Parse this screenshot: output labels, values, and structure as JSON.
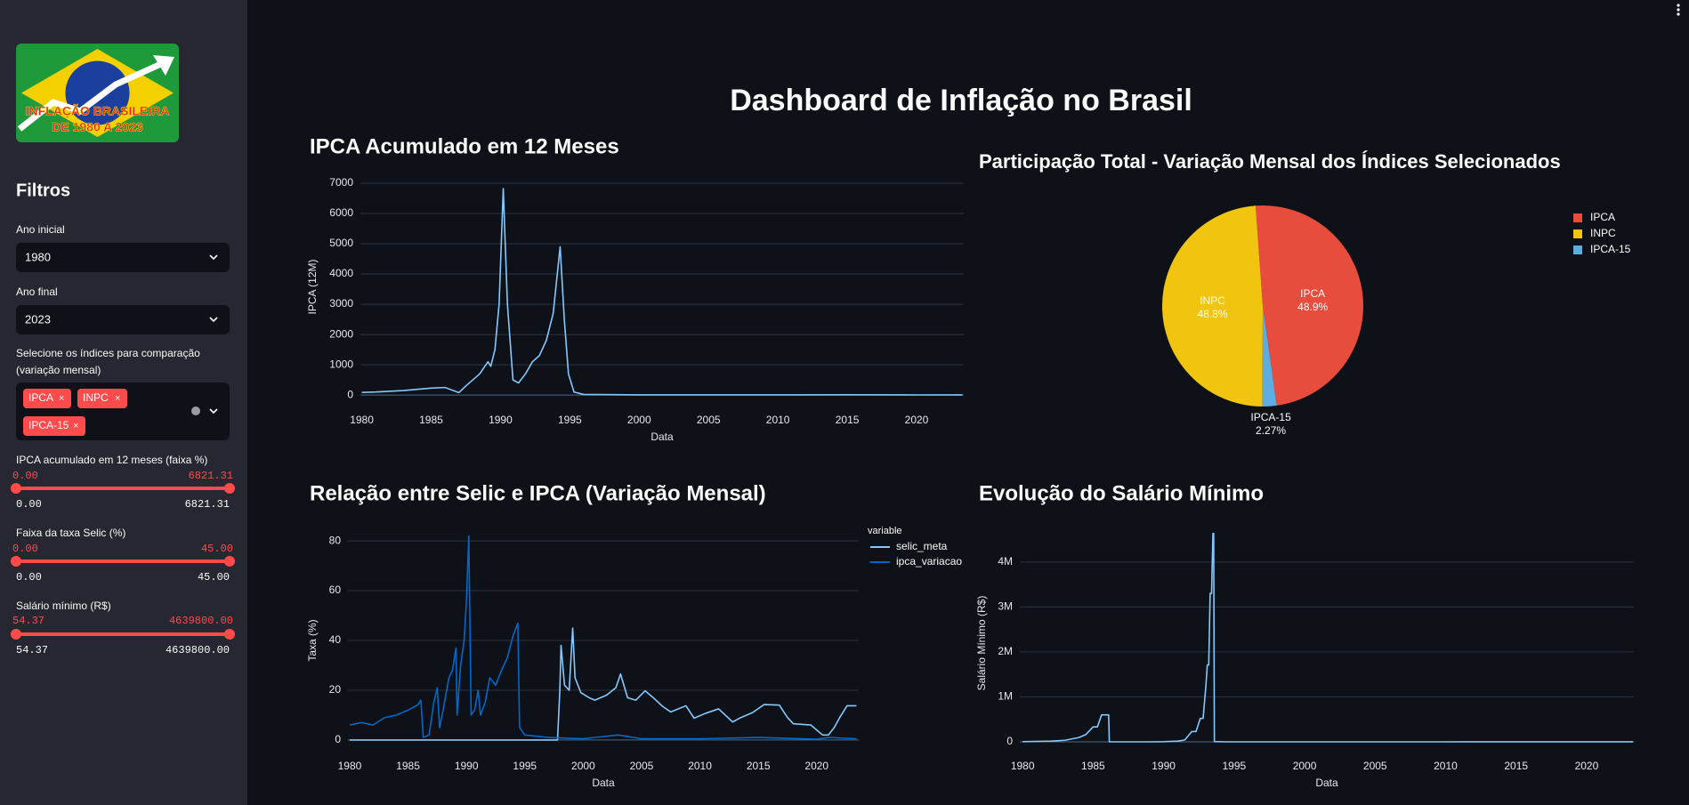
{
  "sidebar": {
    "logo": {
      "line1": "INFLAÇÃO BRASILEIRA",
      "line2": "DE 1980 A 2023"
    },
    "heading": "Filtros",
    "controls": [
      {
        "label": "Ano inicial",
        "value": "1980"
      },
      {
        "label": "Ano final",
        "value": "2023"
      },
      {
        "label": "Selecione os índices para comparação (variação mensal)",
        "selected": [
          "IPCA",
          "INPC",
          "IPCA-15"
        ]
      },
      {
        "label": "IPCA acumulado em 12 meses (faixa %)",
        "min": "0.00",
        "max": "6821.31"
      },
      {
        "label": "Faixa da taxa Selic (%)",
        "min": "0.00",
        "max": "45.00"
      },
      {
        "label": "Salário mínimo (R$)",
        "min": "54.37",
        "max": "4639800.00"
      }
    ]
  },
  "header": {
    "title": "Dashboard de Inflação no Brasil"
  },
  "chart_data": [
    {
      "type": "line",
      "title": "IPCA Acumulado em 12 Meses",
      "xlabel": "Data",
      "ylabel": "IPCA (12M)",
      "xlim": [
        1979.9,
        2023.4
      ],
      "ylim": [
        -290,
        7440
      ],
      "xticks": [
        1980,
        1985,
        1990,
        1995,
        2000,
        2005,
        2010,
        2015,
        2020
      ],
      "yticks": [
        0,
        1000,
        2000,
        3000,
        4000,
        5000,
        6000,
        7000
      ],
      "grid": true,
      "series": [
        {
          "color": "#83c9ff",
          "x": [
            1980,
            1981,
            1983,
            1985,
            1986,
            1987.0,
            1987.5,
            1988.5,
            1989.1,
            1989.3,
            1989.6,
            1989.9,
            1990.2,
            1990.5,
            1990.9,
            1991.3,
            1991.8,
            1992.3,
            1992.8,
            1993.3,
            1993.8,
            1994.3,
            1994.6,
            1994.9,
            1995.3,
            1996,
            2000,
            2005,
            2010,
            2015,
            2020,
            2023.3
          ],
          "values": [
            86,
            100,
            150,
            230,
            250,
            80,
            300,
            700,
            1100,
            950,
            1500,
            3000,
            6821.31,
            3000,
            500,
            400,
            700,
            1100,
            1300,
            1800,
            2700,
            4900,
            2500,
            700,
            100,
            20,
            6,
            6,
            5,
            10,
            4,
            5
          ]
        }
      ]
    },
    {
      "type": "pie",
      "title": "Participação Total - Variação Mensal dos Índices Selecionados",
      "categories": [
        "IPCA",
        "INPC",
        "IPCA-15"
      ],
      "values": [
        48.9,
        48.8,
        2.27
      ],
      "value_labels": [
        "48.9%",
        "48.8%",
        "2.27%"
      ],
      "colors": [
        "#e74c3c",
        "#f1c40f",
        "#5dade2"
      ]
    },
    {
      "type": "line",
      "title": "Relação entre Selic e IPCA (Variação Mensal)",
      "xlabel": "Data",
      "ylabel": "Taxa (%)",
      "legend_title": "variable",
      "xlim": [
        1979.85,
        2023.6
      ],
      "ylim": [
        -5.4,
        85.4
      ],
      "xticks": [
        1980,
        1985,
        1990,
        1995,
        2000,
        2005,
        2010,
        2015,
        2020
      ],
      "yticks": [
        0,
        20,
        40,
        60,
        80
      ],
      "grid": true,
      "series": [
        {
          "name": "selic_meta",
          "color": "#83c9ff",
          "x": [
            1980,
            1997.8,
            1998,
            1998.1,
            1998.4,
            1998.8,
            1999.1,
            1999.3,
            1999.8,
            2000.5,
            2001,
            2002,
            2002.8,
            2003.2,
            2003.8,
            2004.5,
            2005.3,
            2006,
            2006.8,
            2007.5,
            2008.8,
            2009.5,
            2010.5,
            2011.6,
            2012.8,
            2013.5,
            2014.5,
            2015.5,
            2016.8,
            2017.5,
            2018,
            2019.5,
            2020.5,
            2021,
            2021.5,
            2022,
            2022.6,
            2023.4
          ],
          "values": [
            0,
            0,
            20,
            38,
            22,
            20,
            45,
            25,
            19,
            17,
            16,
            18,
            21,
            26.5,
            17,
            16,
            19.75,
            17,
            13.5,
            11.25,
            13.75,
            8.75,
            10.75,
            12.5,
            7.25,
            9,
            11,
            14.25,
            14,
            9,
            6.5,
            6,
            2,
            2,
            5,
            9.25,
            13.75,
            13.75
          ]
        },
        {
          "name": "ipca_variacao",
          "color": "#0068c9",
          "x": [
            1980,
            1981,
            1982,
            1983,
            1984,
            1985,
            1985.8,
            1986.1,
            1986.3,
            1986.8,
            1987.2,
            1987.5,
            1987.7,
            1988,
            1988.5,
            1988.8,
            1989.1,
            1989.2,
            1989.5,
            1989.8,
            1990,
            1990.2,
            1990.4,
            1990.7,
            1991,
            1991.2,
            1991.6,
            1992,
            1992.5,
            1993,
            1993.5,
            1994,
            1994.4,
            1994.55,
            1995,
            1997,
            2000,
            2003,
            2005,
            2010,
            2015,
            2020,
            2021,
            2023.4
          ],
          "values": [
            6,
            7,
            6,
            9,
            10,
            12,
            14,
            16,
            1,
            2,
            15,
            21,
            5,
            12,
            25,
            28,
            37,
            10,
            30,
            40,
            56,
            82,
            10,
            12,
            20,
            10,
            15,
            25,
            22,
            28,
            33,
            42,
            47,
            5,
            2,
            1,
            0.5,
            2,
            0.5,
            0.5,
            1,
            0.3,
            1,
            0.5
          ]
        }
      ]
    },
    {
      "type": "line",
      "title": "Evolução do Salário Mínimo",
      "xlabel": "Data",
      "ylabel": "Salário Mínimo (R$)",
      "xlim": [
        1979.8,
        2023.35
      ],
      "ylim": [
        -257000,
        4650000
      ],
      "xticks": [
        1980,
        1985,
        1990,
        1995,
        2000,
        2005,
        2010,
        2015,
        2020
      ],
      "yticks": [
        0,
        {
          "value": 1000000,
          "label": "1M"
        },
        {
          "value": 2000000,
          "label": "2M"
        },
        {
          "value": 3000000,
          "label": "3M"
        },
        {
          "value": 4000000,
          "label": "4M"
        }
      ],
      "grid": true,
      "series": [
        {
          "color": "#83c9ff",
          "x": [
            1980,
            1982,
            1983,
            1984,
            1984.5,
            1985,
            1985.3,
            1985.6,
            1985.9,
            1986.1,
            1986.15,
            1989,
            1990,
            1991,
            1991.5,
            1992,
            1992.3,
            1992.6,
            1992.8,
            1993,
            1993.1,
            1993.2,
            1993.3,
            1993.4,
            1993.5,
            1993.55,
            1993.6,
            1994.5,
            2000,
            2010,
            2023.3
          ],
          "values": [
            4149,
            16608,
            34776,
            97176,
            166560,
            333120,
            333120,
            600000,
            600000,
            600000,
            804,
            120,
            3674,
            17000,
            42000,
            230000,
            230000,
            522186,
            522186,
            1250700,
            1709400,
            1709400,
            3303300,
            3303300,
            4639800,
            4639800,
            5534,
            64.79,
            151,
            510,
            1320
          ]
        }
      ]
    }
  ]
}
